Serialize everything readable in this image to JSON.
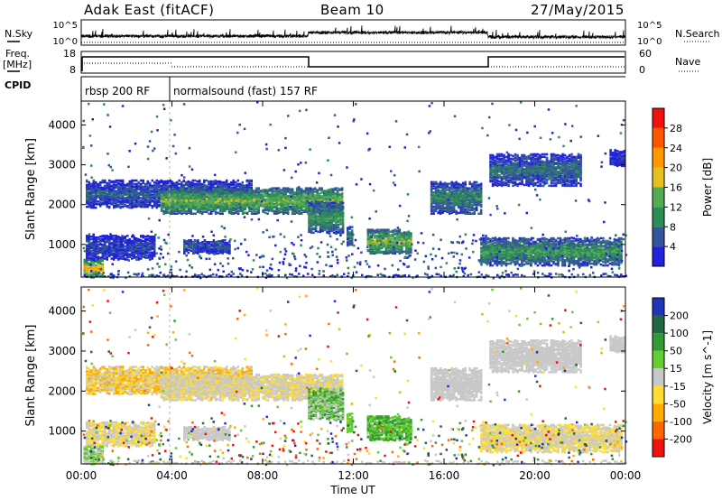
{
  "header": {
    "title": "Adak East (fitACF)",
    "beam": "Beam 10",
    "date": "27/May/2015"
  },
  "colors": {
    "power": [
      "#2222dd",
      "#335599",
      "#2e8b57",
      "#55aa55",
      "#e6c020",
      "#ff9900",
      "#ff5500",
      "#ee1111"
    ],
    "velocity": [
      "#ee1111",
      "#ff6600",
      "#ffaa00",
      "#ffdd33",
      "#c8c8c8",
      "#66cc33",
      "#339933",
      "#226644",
      "#2233bb"
    ]
  },
  "top_panels": {
    "nsky_label": "N.Sky",
    "nsky_ticks": [
      "10^5",
      "10^0"
    ],
    "nsearch_label": "N.Search",
    "nsearch_ticks": [
      "10^5",
      "10^0"
    ],
    "freq_label": "Freq.",
    "freq_unit": "[MHz]",
    "freq_ticks": [
      "18",
      "8"
    ],
    "nave_label": "Nave",
    "nave_ticks": [
      "60",
      "0"
    ],
    "cpid_label": "CPID",
    "cpid_segments": [
      {
        "label": "rbsp 200 RF",
        "start_hour": 0.0,
        "end_hour": 3.9
      },
      {
        "label": "normalsound (fast) 157 RF",
        "start_hour": 3.9,
        "end_hour": 24.0
      }
    ]
  },
  "chart_data": [
    {
      "type": "heatmap",
      "name": "power",
      "ylabel": "Slant Range [km]",
      "xlim": [
        0,
        24
      ],
      "ylim": [
        180,
        4600
      ],
      "yticks": [
        "1000",
        "2000",
        "3000",
        "4000"
      ],
      "colorbar": {
        "label": "Power [dB]",
        "ticks": [
          "4",
          "8",
          "12",
          "16",
          "20",
          "24",
          "28"
        ]
      }
    },
    {
      "type": "heatmap",
      "name": "velocity",
      "ylabel": "Slant Range [km]",
      "xlabel": "Time UT",
      "xlim": [
        0,
        24
      ],
      "ylim": [
        180,
        4600
      ],
      "xticks": [
        "00:00",
        "04:00",
        "08:00",
        "12:00",
        "16:00",
        "20:00",
        "00:00"
      ],
      "yticks": [
        "1000",
        "2000",
        "3000",
        "4000"
      ],
      "colorbar": {
        "label": "Velocity [m s^-1]",
        "ticks": [
          "-200",
          "-100",
          "-50",
          "-15",
          "15",
          "50",
          "100",
          "200"
        ]
      }
    }
  ]
}
